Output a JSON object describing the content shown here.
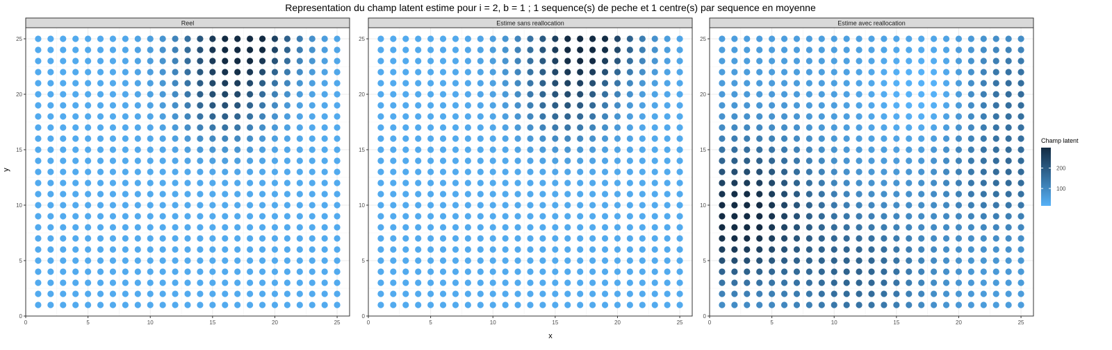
{
  "chart_data": {
    "type": "scatter",
    "title": "Representation du champ latent estime pour i = 2, b = 1 ; 1 sequence(s) de peche et 1 centre(s) par sequence en moyenne",
    "xlabel": "x",
    "ylabel": "y",
    "xlim": [
      0,
      26
    ],
    "ylim": [
      0,
      26
    ],
    "x_ticks": [
      0,
      5,
      10,
      15,
      20,
      25
    ],
    "y_ticks": [
      0,
      5,
      10,
      15,
      20,
      25
    ],
    "grid": true,
    "grid_x": [
      1,
      25
    ],
    "grid_y": [
      1,
      25
    ],
    "legend": {
      "title": "Champ latent",
      "position": "right",
      "ticks": [
        100,
        200
      ],
      "range": [
        15,
        300
      ],
      "low_color": "#56B1F7",
      "high_color": "#132B43"
    },
    "panels": [
      {
        "name": "Reel",
        "field": {
          "base": 30,
          "bumps": [
            {
              "x": 18,
              "y": 25,
              "amp": 255,
              "s": 2.8
            },
            {
              "x": 16,
              "y": 19,
              "amp": 150,
              "s": 2.5
            },
            {
              "x": 15,
              "y": 24,
              "amp": 90,
              "s": 3.0
            }
          ]
        }
      },
      {
        "name": "Estime sans reallocation",
        "field": {
          "base": 30,
          "bumps": [
            {
              "x": 18,
              "y": 25,
              "amp": 245,
              "s": 2.8
            },
            {
              "x": 16,
              "y": 19,
              "amp": 140,
              "s": 2.5
            },
            {
              "x": 15,
              "y": 24,
              "amp": 85,
              "s": 3.0
            }
          ]
        }
      },
      {
        "name": "Estime avec reallocation",
        "field": {
          "base": 55,
          "bumps": [
            {
              "x": 3,
              "y": 10,
              "amp": 205,
              "s": 4.0
            },
            {
              "x": 1,
              "y": 7,
              "amp": 90,
              "s": 3.5
            },
            {
              "x": 12,
              "y": 4,
              "amp": 120,
              "s": 4.0
            },
            {
              "x": 24,
              "y": 13,
              "amp": 110,
              "s": 4.0
            },
            {
              "x": 24,
              "y": 21,
              "amp": 100,
              "s": 3.0
            },
            {
              "x": 18,
              "y": 20,
              "amp": -60,
              "s": 3.5
            }
          ]
        }
      }
    ]
  }
}
